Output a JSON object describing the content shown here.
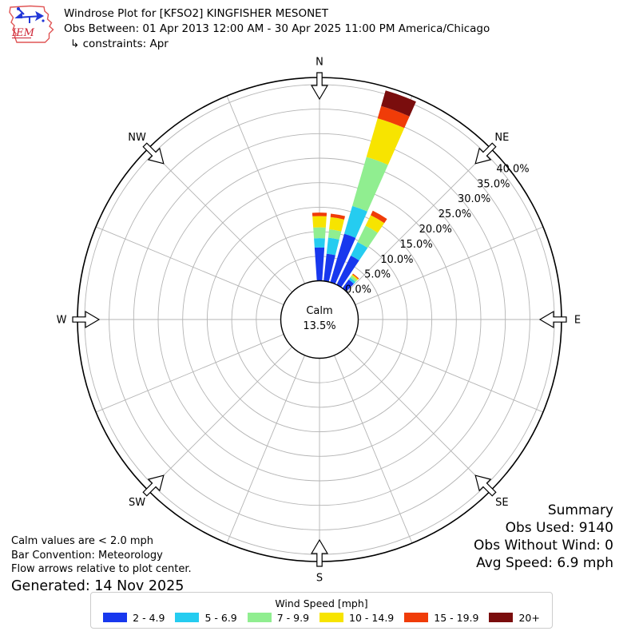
{
  "header": {
    "title": "Windrose Plot for [KFSO2] KINGFISHER MESONET",
    "obs_between": "Obs Between: 01 Apr 2013 12:00 AM - 30 Apr 2025 11:00 PM America/Chicago",
    "constraints": "↳ constraints: Apr",
    "logo_text": "IEM"
  },
  "summary": {
    "title": "Summary",
    "obs_used": "Obs Used: 9140",
    "obs_without_wind": "Obs Without Wind: 0",
    "avg_speed": "Avg Speed: 6.9 mph"
  },
  "notes": {
    "calm": "Calm values are < 2.0 mph",
    "convention": "Bar Convention: Meteorology",
    "arrows": "Flow arrows relative to plot center.",
    "generated": "Generated: 14 Nov 2025"
  },
  "legend": {
    "title": "Wind Speed [mph]",
    "items": [
      {
        "label": "2 - 4.9",
        "color": "#1838ee"
      },
      {
        "label": "5 - 6.9",
        "color": "#25ccf0"
      },
      {
        "label": "7 - 9.9",
        "color": "#90ee90"
      },
      {
        "label": "10 - 14.9",
        "color": "#f7e400"
      },
      {
        "label": "15 - 19.9",
        "color": "#f03c08"
      },
      {
        "label": "20+",
        "color": "#7a0d0d"
      }
    ]
  },
  "chart_data": {
    "type": "windrose",
    "title": "Windrose Plot for [KFSO2] KINGFISHER MESONET",
    "units": "percent frequency of observations",
    "direction_sector_width_deg": 10,
    "speed_bins_mph": [
      "2 - 4.9",
      "5 - 6.9",
      "7 - 9.9",
      "10 - 14.9",
      "15 - 19.9",
      "20+"
    ],
    "petals": [
      {
        "dir_deg": 0,
        "values_pct": [
          6.8,
          1.9,
          2.2,
          2.3,
          0.7,
          0
        ],
        "total_pct": 13.9
      },
      {
        "dir_deg": 10,
        "values_pct": [
          5.6,
          3.3,
          1.7,
          2.5,
          0.7,
          0
        ],
        "total_pct": 13.8
      },
      {
        "dir_deg": 20,
        "values_pct": [
          10.3,
          5.9,
          10.4,
          8.2,
          2.6,
          3.3
        ],
        "total_pct": 40.7
      },
      {
        "dir_deg": 30,
        "values_pct": [
          6.6,
          3.1,
          3.7,
          2.4,
          1.0,
          0
        ],
        "total_pct": 16.8
      },
      {
        "dir_deg": 40,
        "values_pct": [
          2.2,
          0.5,
          0.5,
          0.3,
          0.2,
          0
        ],
        "total_pct": 3.7
      }
    ],
    "radial_axis": {
      "ticks": [
        "0.0%",
        "5.0%",
        "10.0%",
        "15.0%",
        "20.0%",
        "25.0%",
        "30.0%",
        "35.0%",
        "40.0%"
      ],
      "tick_step_pct": 5,
      "max_pct": 40
    },
    "compass_labels": [
      "N",
      "NE",
      "E",
      "SE",
      "S",
      "SW",
      "W",
      "NW"
    ],
    "calm": {
      "label": "Calm",
      "value": "13.5%"
    },
    "legend_position": "bottom",
    "grid": true
  }
}
